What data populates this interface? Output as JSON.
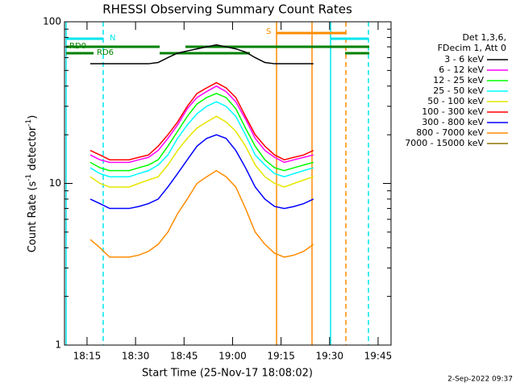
{
  "chart_data": {
    "type": "line",
    "title": "RHESSI Observing Summary Count Rates",
    "xlabel": "Start Time (25-Nov-17 18:08:02)",
    "ylabel_parts": [
      "Count Rate (s",
      "-1",
      " detector",
      "-1",
      ")"
    ],
    "legend_header": [
      "Det 1,3,6,",
      "FDecim 1, Att 0"
    ],
    "annotations": [
      "N",
      "S",
      "RD0",
      "RD6"
    ],
    "footer": "2-Sep-2022 09:37",
    "log_y": true,
    "xlim": [
      "18:08:02",
      "19:49"
    ],
    "xticks": [
      "18:15",
      "18:30",
      "18:45",
      "19:00",
      "19:15",
      "19:30",
      "19:45"
    ],
    "ylim": [
      1,
      100
    ],
    "yticks": [
      1,
      10,
      100
    ],
    "yminorticks": [
      2,
      3,
      4,
      5,
      6,
      7,
      8,
      9,
      20,
      30,
      40,
      50,
      60,
      70,
      80,
      90
    ],
    "x": [
      "18:16",
      "18:19",
      "18:22",
      "18:25",
      "18:28",
      "18:31",
      "18:34",
      "18:37",
      "18:40",
      "18:43",
      "18:46",
      "18:49",
      "18:52",
      "18:55",
      "18:58",
      "19:01",
      "19:04",
      "19:07",
      "19:10",
      "19:13",
      "19:16",
      "19:19",
      "19:22",
      "19:25"
    ],
    "series": [
      {
        "name": "3 - 6 keV",
        "color": "#000000",
        "values": [
          55,
          55,
          55,
          55,
          55,
          55,
          55,
          56,
          60,
          64,
          66,
          68,
          70,
          72,
          70,
          68,
          65,
          60,
          56,
          55,
          55,
          55,
          55,
          55
        ]
      },
      {
        "name": "6 - 12 keV",
        "color": "#ff00ff",
        "values": [
          15,
          14,
          13.5,
          13.5,
          13.5,
          14,
          14.5,
          16,
          19,
          23,
          29,
          34,
          37,
          40,
          37,
          32,
          25,
          19,
          16,
          14.5,
          13.5,
          14,
          14.5,
          15
        ]
      },
      {
        "name": "12 - 25 keV",
        "color": "#00ff00",
        "values": [
          13.5,
          12.5,
          12,
          12,
          12,
          12.5,
          13,
          14,
          17,
          21,
          26,
          31,
          34,
          36,
          34,
          29,
          22,
          17,
          14,
          12.5,
          12,
          12.5,
          13,
          13.5
        ]
      },
      {
        "name": "25 - 50 keV",
        "color": "#00ffff",
        "values": [
          12.5,
          11.5,
          11,
          11,
          11,
          11.5,
          12,
          13,
          15,
          19,
          23,
          27,
          30,
          32,
          30,
          26,
          20,
          15,
          13,
          11.5,
          11,
          11.5,
          12,
          12.5
        ]
      },
      {
        "name": "50 - 100 keV",
        "color": "#e6e600",
        "values": [
          11,
          10,
          9.5,
          9.5,
          9.5,
          10,
          10.5,
          11,
          13,
          16,
          19,
          22,
          24,
          26,
          24,
          21,
          17,
          13,
          11,
          10,
          9.5,
          10,
          10.5,
          11
        ]
      },
      {
        "name": "100 - 300 keV",
        "color": "#ff0000",
        "values": [
          16,
          15,
          14,
          14,
          14,
          14.5,
          15,
          17,
          20,
          24,
          30,
          36,
          39,
          42,
          39,
          34,
          26,
          20,
          17,
          15,
          14,
          14.5,
          15,
          16
        ]
      },
      {
        "name": "300 - 800 keV",
        "color": "#0000ff",
        "values": [
          8,
          7.5,
          7,
          7,
          7,
          7.2,
          7.5,
          8,
          9.5,
          11.5,
          14,
          17,
          19,
          20,
          19,
          16,
          12.5,
          9.5,
          8,
          7.2,
          7,
          7.2,
          7.5,
          8
        ]
      },
      {
        "name": "800 - 7000 keV",
        "color": "#ff8c00",
        "values": [
          4.5,
          4,
          3.5,
          3.5,
          3.5,
          3.6,
          3.8,
          4.2,
          5,
          6.5,
          8,
          10,
          11,
          12,
          11,
          9.5,
          7,
          5,
          4.2,
          3.7,
          3.5,
          3.6,
          3.8,
          4.2
        ]
      },
      {
        "name": "7000 - 15000 keV",
        "color": "#8b7500",
        "values": [
          null,
          null,
          null,
          null,
          null,
          null,
          null,
          null,
          null,
          null,
          null,
          null,
          null,
          null,
          null,
          null,
          null,
          null,
          null,
          null,
          null,
          null,
          null,
          null
        ]
      }
    ]
  }
}
